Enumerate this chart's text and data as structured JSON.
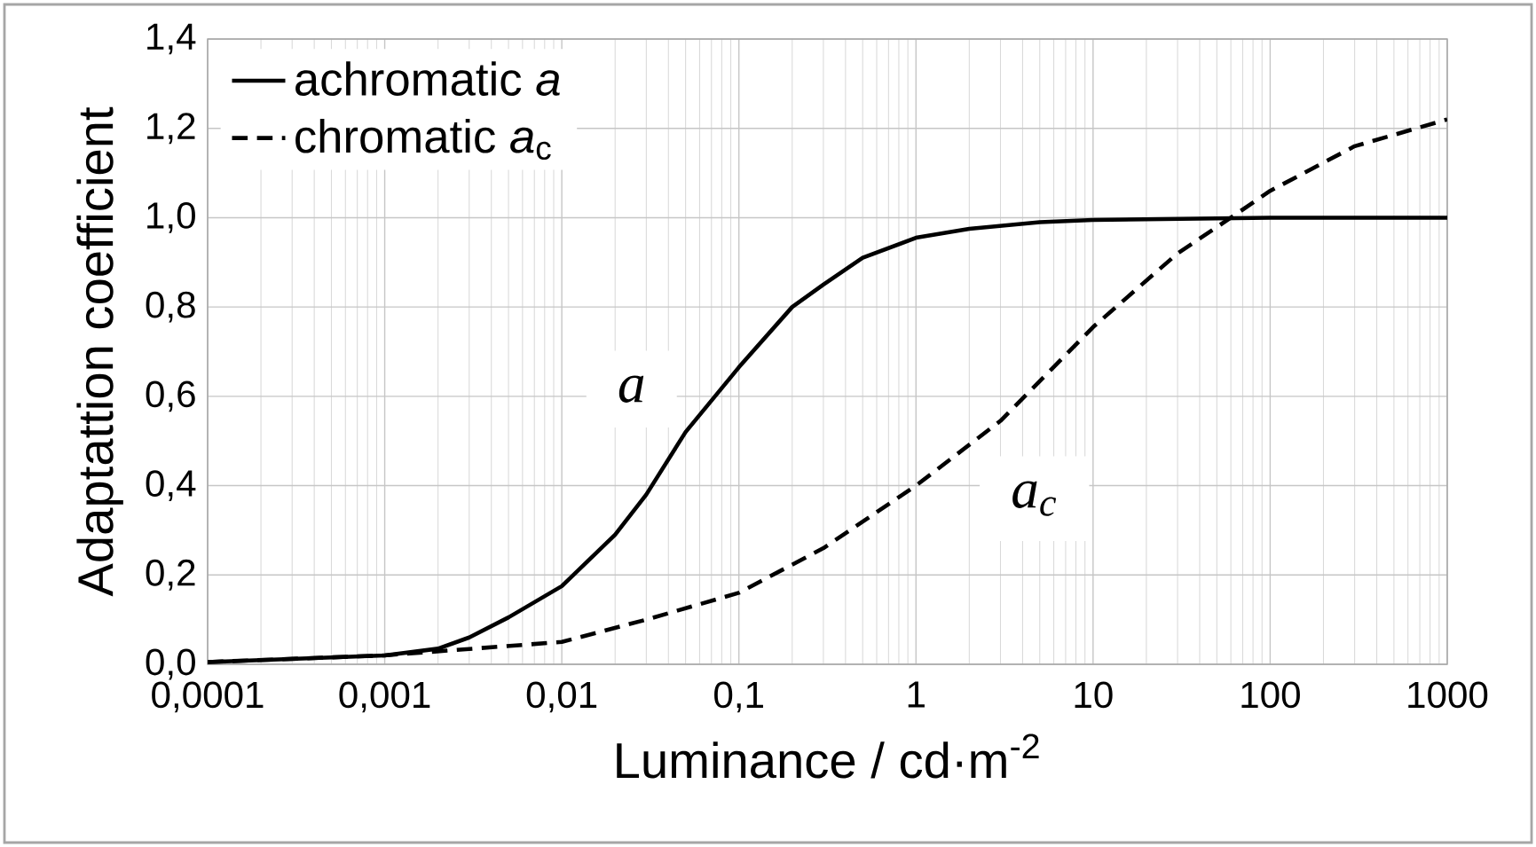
{
  "chart_data": {
    "type": "line",
    "xlabel": "Luminance / cd·m$^{-2}$",
    "ylabel": "Adaptattion coefficient",
    "log": "x",
    "grid": true,
    "legend": "top left",
    "marker": "none",
    "xlim": [
      0.0001,
      1000
    ],
    "ylim": [
      0,
      1.4
    ],
    "xticks": [
      {
        "value": 0.0001,
        "label": "0,0001"
      },
      {
        "value": 0.001,
        "label": "0,001"
      },
      {
        "value": 0.01,
        "label": "0,01"
      },
      {
        "value": 0.1,
        "label": "0,1"
      },
      1,
      10,
      100,
      1000
    ],
    "yticks": [
      {
        "value": 0,
        "label": "0,0"
      },
      {
        "value": 0.2,
        "label": "0,2"
      },
      {
        "value": 0.4,
        "label": "0,4"
      },
      {
        "value": 0.6,
        "label": "0,6"
      },
      {
        "value": 0.8,
        "label": "0,8"
      },
      {
        "value": 1.0,
        "label": "1,0"
      },
      {
        "value": 1.2,
        "label": "1,2"
      },
      {
        "value": 1.4,
        "label": "1,4"
      }
    ],
    "series": [
      {
        "name": "achromatic *a*",
        "color": "#000000",
        "line_style": "solid",
        "x": [
          0.0001,
          0.001,
          0.002,
          0.003,
          0.005,
          0.01,
          0.02,
          0.03,
          0.05,
          0.1,
          0.2,
          0.3,
          0.5,
          1,
          2,
          5,
          10,
          100,
          1000
        ],
        "values": [
          0.005,
          0.02,
          0.035,
          0.06,
          0.105,
          0.175,
          0.29,
          0.38,
          0.52,
          0.665,
          0.8,
          0.85,
          0.91,
          0.955,
          0.975,
          0.99,
          0.995,
          1.0,
          1.0
        ]
      },
      {
        "name": "chromatic *a*$_{c}$",
        "color": "#000000",
        "line_style": "dashed",
        "x": [
          0.0001,
          0.001,
          0.01,
          0.03,
          0.1,
          0.3,
          1,
          3,
          10,
          30,
          60,
          100,
          300,
          1000
        ],
        "values": [
          0.005,
          0.02,
          0.05,
          0.1,
          0.16,
          0.26,
          0.4,
          0.545,
          0.755,
          0.92,
          1.0,
          1.06,
          1.16,
          1.22
        ]
      }
    ],
    "annotations": [
      "a",
      "a$_{c}$"
    ]
  }
}
